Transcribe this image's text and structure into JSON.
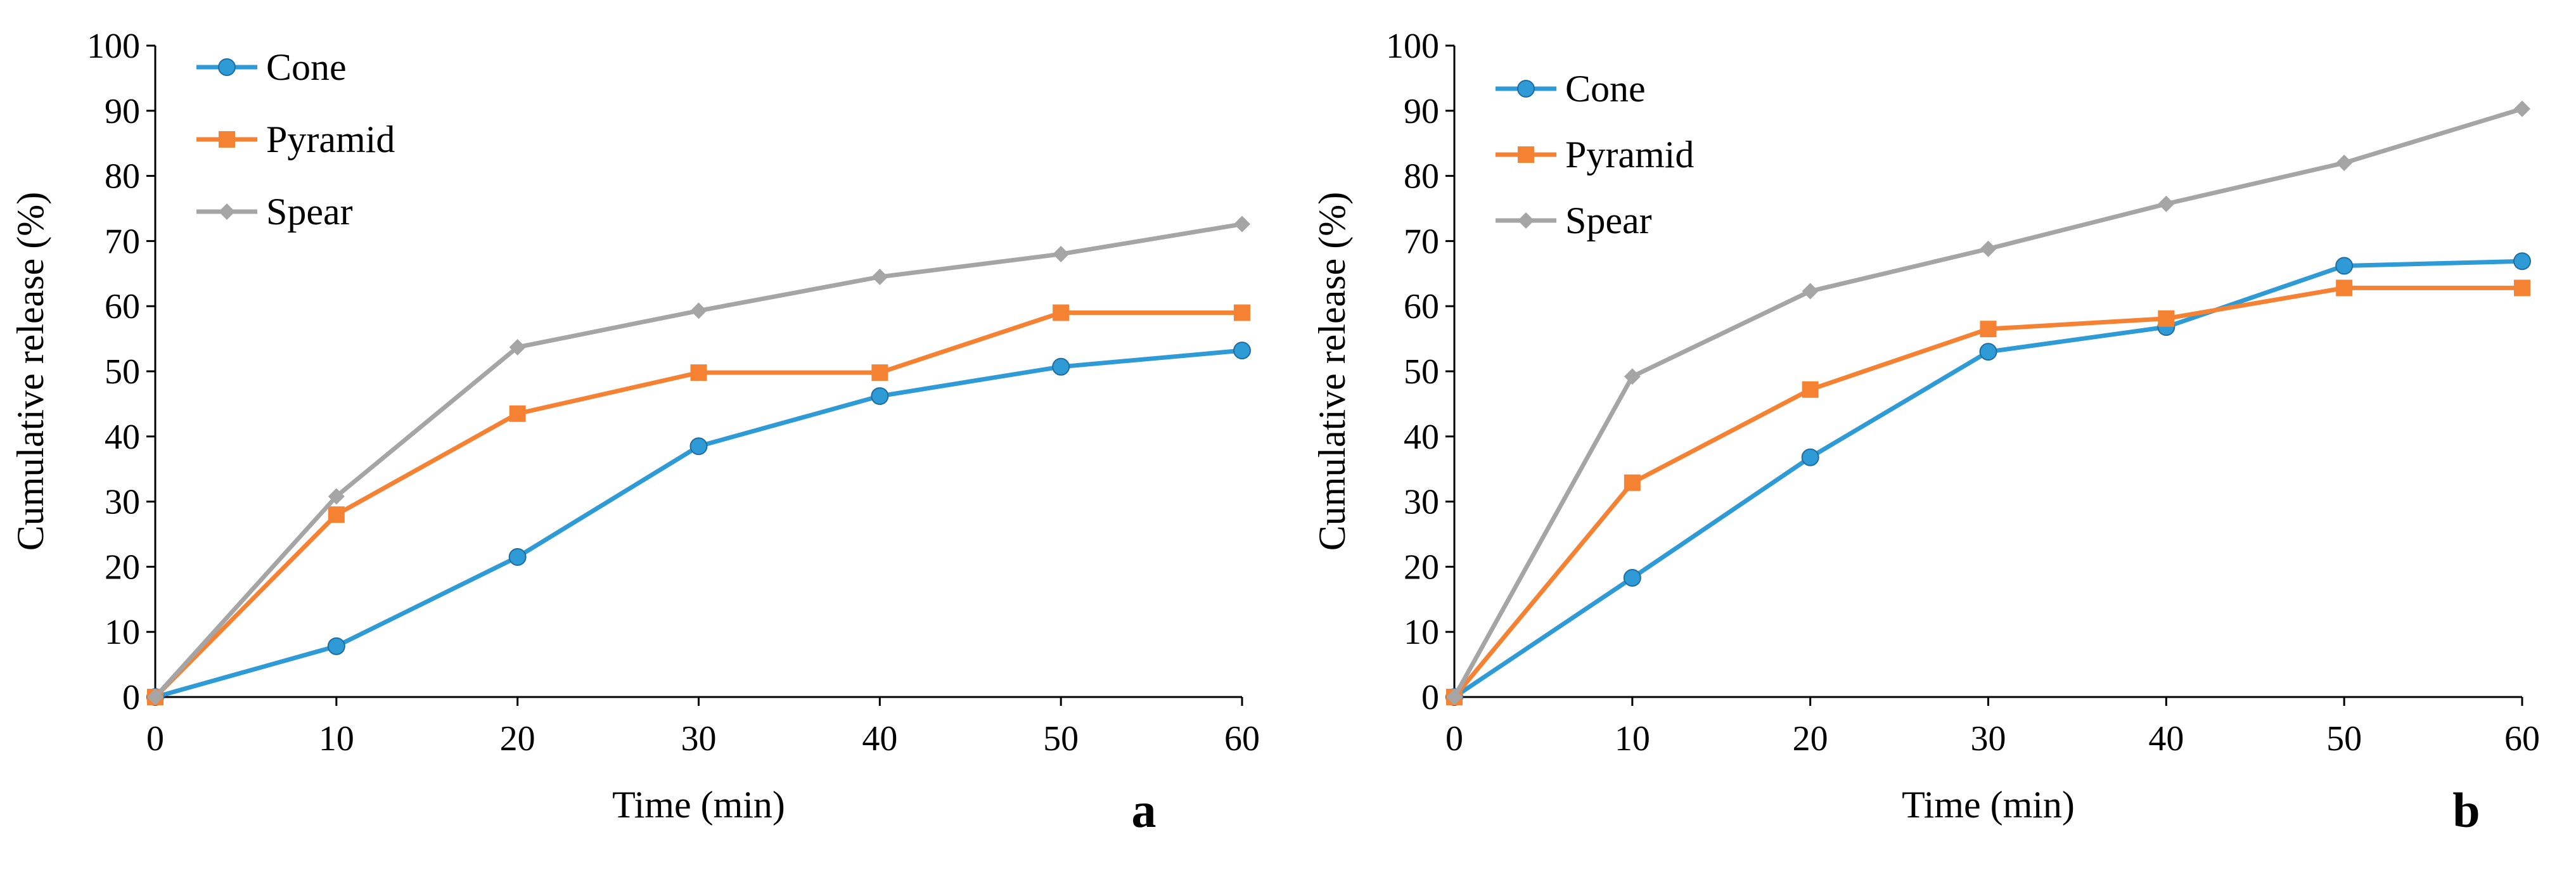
{
  "chart_data": [
    {
      "type": "line",
      "panel_label": "a",
      "x": [
        0,
        10,
        20,
        30,
        40,
        50,
        60
      ],
      "xlim": [
        0,
        60
      ],
      "ylim": [
        0,
        100
      ],
      "xticks": [
        0,
        10,
        20,
        30,
        40,
        50,
        60
      ],
      "yticks": [
        0,
        10,
        20,
        30,
        40,
        50,
        60,
        70,
        80,
        90,
        100
      ],
      "xlabel": "Time (min)",
      "ylabel": "Cumulative release (%)",
      "legend_position": "top-left",
      "grid": false,
      "series": [
        {
          "name": "Cone",
          "color": "#2E9AD6",
          "marker": "circle",
          "values": [
            0,
            7.8,
            21.5,
            38.5,
            46.2,
            50.7,
            53.2
          ]
        },
        {
          "name": "Pyramid",
          "color": "#F58233",
          "marker": "square",
          "values": [
            0,
            28,
            43.5,
            49.8,
            49.8,
            59,
            59
          ]
        },
        {
          "name": "Spear",
          "color": "#A5A5A5",
          "marker": "diamond",
          "values": [
            0,
            30.8,
            53.7,
            59.3,
            64.5,
            68,
            72.6
          ]
        }
      ]
    },
    {
      "type": "line",
      "panel_label": "b",
      "x": [
        0,
        10,
        20,
        30,
        40,
        50,
        60
      ],
      "xlim": [
        0,
        60
      ],
      "ylim": [
        0,
        100
      ],
      "xticks": [
        0,
        10,
        20,
        30,
        40,
        50,
        60
      ],
      "yticks": [
        0,
        10,
        20,
        30,
        40,
        50,
        60,
        70,
        80,
        90,
        100
      ],
      "xlabel": "Time (min)",
      "ylabel": "Cumulative release (%)",
      "legend_position": "top-left",
      "grid": false,
      "series": [
        {
          "name": "Cone",
          "color": "#2E9AD6",
          "marker": "circle",
          "values": [
            0,
            18.3,
            36.8,
            53,
            56.8,
            66.2,
            66.9
          ]
        },
        {
          "name": "Pyramid",
          "color": "#F58233",
          "marker": "square",
          "values": [
            0,
            32.9,
            47.2,
            56.5,
            58.1,
            62.8,
            62.8
          ]
        },
        {
          "name": "Spear",
          "color": "#A5A5A5",
          "marker": "diamond",
          "values": [
            0,
            49.2,
            62.3,
            68.8,
            75.7,
            82,
            90.3
          ]
        }
      ]
    }
  ]
}
